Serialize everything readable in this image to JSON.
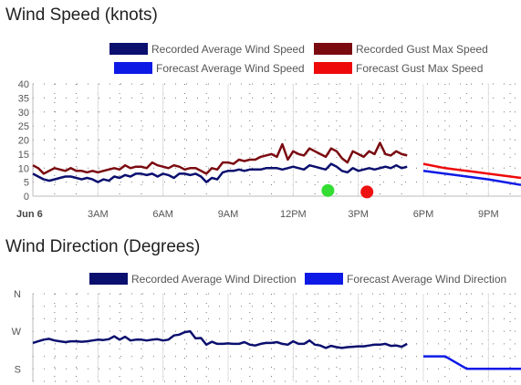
{
  "chart_data": [
    {
      "type": "line",
      "title": "Wind Speed (knots)",
      "ylim": [
        0,
        40
      ],
      "y_ticks": [
        "0",
        "5",
        "10",
        "15",
        "20",
        "25",
        "30",
        "35",
        "40"
      ],
      "x_ticks": [
        "Jun 6",
        "3AM",
        "6AM",
        "9AM",
        "12PM",
        "3PM",
        "6PM",
        "9PM"
      ],
      "x_range_hours": [
        0,
        22.5
      ],
      "grid": true,
      "legend_position": "top",
      "series": [
        {
          "name": "Recorded Average Wind Speed",
          "color": "#0b0f6e",
          "x": [
            0,
            0.25,
            0.5,
            0.75,
            1,
            1.25,
            1.5,
            1.75,
            2,
            2.25,
            2.5,
            2.75,
            3,
            3.25,
            3.5,
            3.75,
            4,
            4.25,
            4.5,
            4.75,
            5,
            5.25,
            5.5,
            5.75,
            6,
            6.25,
            6.5,
            6.75,
            7,
            7.25,
            7.5,
            7.75,
            8,
            8.25,
            8.5,
            8.75,
            9,
            9.25,
            9.5,
            9.75,
            10,
            10.25,
            10.5,
            10.75,
            11,
            11.25,
            11.5,
            11.75,
            12,
            12.25,
            12.5,
            12.75,
            13,
            13.25,
            13.5,
            13.75,
            14,
            14.25,
            14.5,
            14.75,
            15,
            15.25,
            15.5,
            15.75,
            16,
            16.25,
            16.5,
            16.75,
            17,
            17.25
          ],
          "values": [
            8,
            7,
            6,
            5.5,
            6,
            6.5,
            7,
            7,
            6.5,
            6,
            6.5,
            6,
            5,
            6,
            5.5,
            7,
            6.5,
            7.5,
            7,
            8,
            8,
            7.5,
            8,
            7,
            8,
            7.5,
            6.5,
            8,
            8,
            7.5,
            8,
            7,
            5,
            6.5,
            6,
            8.5,
            9,
            9,
            9.5,
            9,
            9.5,
            9.5,
            9.5,
            10,
            10,
            10,
            9.5,
            10,
            10.5,
            10,
            9.5,
            11,
            10.5,
            10,
            9.5,
            11.5,
            10.5,
            9,
            8.5,
            10,
            9,
            9.5,
            10,
            9.5,
            10,
            10.5,
            10,
            11,
            10,
            10.5
          ]
        },
        {
          "name": "Recorded Gust Max Speed",
          "color": "#7a0a10",
          "x": [
            0,
            0.25,
            0.5,
            0.75,
            1,
            1.25,
            1.5,
            1.75,
            2,
            2.25,
            2.5,
            2.75,
            3,
            3.25,
            3.5,
            3.75,
            4,
            4.25,
            4.5,
            4.75,
            5,
            5.25,
            5.5,
            5.75,
            6,
            6.25,
            6.5,
            6.75,
            7,
            7.25,
            7.5,
            7.75,
            8,
            8.25,
            8.5,
            8.75,
            9,
            9.25,
            9.5,
            9.75,
            10,
            10.25,
            10.5,
            10.75,
            11,
            11.25,
            11.5,
            11.75,
            12,
            12.25,
            12.5,
            12.75,
            13,
            13.25,
            13.5,
            13.75,
            14,
            14.25,
            14.5,
            14.75,
            15,
            15.25,
            15.5,
            15.75,
            16,
            16.25,
            16.5,
            16.75,
            17,
            17.25
          ],
          "values": [
            11,
            10,
            8,
            9,
            10,
            9.5,
            9,
            10,
            9,
            9,
            8.5,
            9,
            8.5,
            9,
            9.5,
            10,
            9.5,
            11,
            10,
            10.5,
            10.5,
            10,
            12,
            11,
            10.5,
            10,
            11,
            10.5,
            9.5,
            10,
            10,
            9,
            8,
            10,
            9.5,
            12,
            12,
            11.5,
            13,
            12.5,
            13,
            13,
            14,
            14.5,
            15,
            14,
            18.5,
            13,
            16,
            15,
            14.5,
            17,
            16,
            15,
            14,
            17,
            16,
            13.5,
            12,
            16,
            15,
            14,
            16,
            15,
            19,
            15,
            14.5,
            16,
            15,
            14.5
          ]
        },
        {
          "name": "Forecast Average Wind Speed",
          "color": "#0d1ae6",
          "x": [
            18,
            19,
            20,
            21,
            22.5
          ],
          "values": [
            9,
            8,
            7,
            6,
            4
          ]
        },
        {
          "name": "Forecast Gust Max Speed",
          "color": "#ee0a0a",
          "x": [
            18,
            19,
            20,
            21,
            22.5
          ],
          "values": [
            11.5,
            10,
            9,
            8,
            6.5
          ]
        }
      ],
      "markers": [
        {
          "x": 13.6,
          "value": 2,
          "color": "#33dd33"
        },
        {
          "x": 15.4,
          "value": 1.5,
          "color": "#ee1111"
        }
      ]
    },
    {
      "type": "line",
      "title": "Wind Direction (Degrees)",
      "y_ticks": [
        "N",
        "W",
        "S"
      ],
      "y_tick_values": [
        360,
        270,
        180
      ],
      "ylim": [
        150,
        360
      ],
      "x_range_hours": [
        0,
        22.5
      ],
      "grid": true,
      "legend_position": "top",
      "series": [
        {
          "name": "Recorded Average Wind Direction",
          "color": "#0b0f6e",
          "x": [
            0,
            0.25,
            0.5,
            0.75,
            1,
            1.25,
            1.5,
            1.75,
            2,
            2.25,
            2.5,
            2.75,
            3,
            3.25,
            3.5,
            3.75,
            4,
            4.25,
            4.5,
            4.75,
            5,
            5.25,
            5.5,
            5.75,
            6,
            6.25,
            6.5,
            6.75,
            7,
            7.25,
            7.5,
            7.75,
            8,
            8.25,
            8.5,
            8.75,
            9,
            9.25,
            9.5,
            9.75,
            10,
            10.25,
            10.5,
            10.75,
            11,
            11.25,
            11.5,
            11.75,
            12,
            12.25,
            12.5,
            12.75,
            13,
            13.25,
            13.5,
            13.75,
            14,
            14.25,
            14.5,
            14.75,
            15,
            15.25,
            15.5,
            15.75,
            16,
            16.25,
            16.5,
            16.75,
            17,
            17.25
          ],
          "values": [
            242,
            246,
            250,
            252,
            248,
            246,
            244,
            246,
            246,
            245,
            246,
            248,
            250,
            249,
            251,
            258,
            250,
            257,
            248,
            250,
            250,
            248,
            250,
            251,
            248,
            250,
            260,
            262,
            268,
            270,
            253,
            254,
            238,
            245,
            240,
            240,
            241,
            240,
            240,
            244,
            238,
            236,
            240,
            242,
            242,
            244,
            240,
            238,
            246,
            240,
            240,
            248,
            238,
            236,
            230,
            235,
            232,
            230,
            232,
            233,
            234,
            234,
            236,
            238,
            238,
            240,
            235,
            236,
            233,
            240
          ]
        },
        {
          "name": "Forecast Average Wind Direction",
          "color": "#0d1ae6",
          "x": [
            18,
            19,
            20,
            21,
            22.5
          ],
          "values": [
            210,
            210,
            180,
            180,
            180
          ]
        }
      ]
    }
  ]
}
